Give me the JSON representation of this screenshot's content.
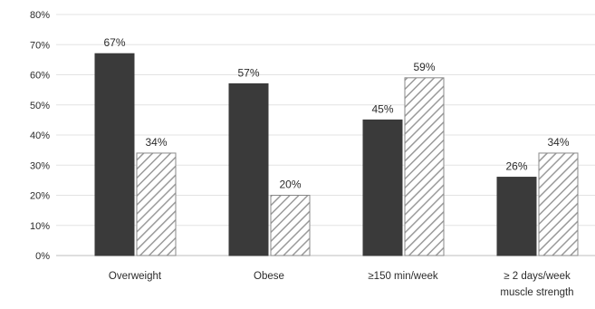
{
  "chart_data": {
    "type": "bar",
    "categories": [
      [
        "Overweight"
      ],
      [
        "Obese"
      ],
      [
        "≥150 min/week"
      ],
      [
        "≥ 2 days/week",
        "muscle strength"
      ]
    ],
    "series": [
      {
        "values": [
          67,
          57,
          45,
          26
        ],
        "style": "solid",
        "color": "#3a3a3a"
      },
      {
        "values": [
          34,
          20,
          59,
          34
        ],
        "style": "hatched",
        "color": "#9a9a9a"
      }
    ],
    "data_labels": [
      [
        "67%",
        "57%",
        "45%",
        "26%"
      ],
      [
        "34%",
        "20%",
        "59%",
        "34%"
      ]
    ],
    "ylim": [
      0,
      80
    ],
    "yticks": [
      0,
      10,
      20,
      30,
      40,
      50,
      60,
      70,
      80
    ],
    "ytick_format": "%",
    "grid": true,
    "title": "",
    "xlabel": "",
    "ylabel": ""
  }
}
